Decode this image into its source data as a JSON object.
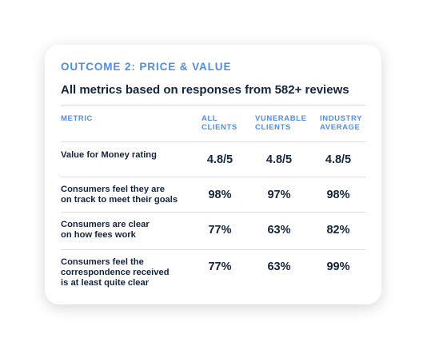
{
  "card": {
    "eyebrow": "OUTCOME 2: PRICE & VALUE",
    "subtitle": "All metrics based on responses from 582+ reviews"
  },
  "table": {
    "headers": {
      "metric": "METRIC",
      "all_1": "ALL",
      "all_2": "CLIENTS",
      "vul_1": "VUNERABLE",
      "vul_2": "CLIENTS",
      "ind_1": "INDUSTRY",
      "ind_2": "AVERAGE"
    },
    "rows": [
      {
        "metric_1": "Value for Money rating",
        "all": "4.8/5",
        "vulnerable": "4.8/5",
        "industry": "4.8/5"
      },
      {
        "metric_1": "Consumers feel they are",
        "metric_2": "on track to meet their goals",
        "all": "98%",
        "vulnerable": "97%",
        "industry": "98%"
      },
      {
        "metric_1": "Consumers are clear",
        "metric_2": "on how fees work",
        "all": "77%",
        "vulnerable": "63%",
        "industry": "82%"
      },
      {
        "metric_1": "Consumers feel the",
        "metric_2": "correspondence received",
        "metric_3": "is at least quite clear",
        "all": "77%",
        "vulnerable": "63%",
        "industry": "99%"
      }
    ]
  }
}
